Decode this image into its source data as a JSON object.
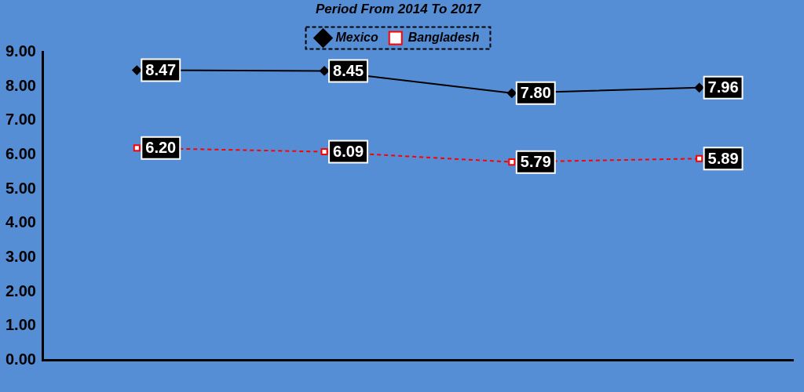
{
  "chart_data": {
    "type": "line",
    "title": "Period From 2014 To 2017",
    "categories": [
      null,
      null,
      null,
      null
    ],
    "series": [
      {
        "name": "Mexico",
        "color": "#000000",
        "marker": "diamond",
        "line_style": "solid",
        "values": [
          8.47,
          8.45,
          7.8,
          7.96
        ],
        "value_labels": [
          "8.47",
          "8.45",
          "7.80",
          "7.96"
        ]
      },
      {
        "name": "Bangladesh",
        "color": "#ff0000",
        "marker": "square",
        "line_style": "dashed",
        "values": [
          6.2,
          6.09,
          5.79,
          5.89
        ],
        "value_labels": [
          "6.20",
          "6.09",
          "5.79",
          "5.89"
        ]
      }
    ],
    "ylim": [
      0,
      9
    ],
    "yticks": [
      {
        "value": 0,
        "label": "0.00"
      },
      {
        "value": 1,
        "label": "1.00"
      },
      {
        "value": 2,
        "label": "2.00"
      },
      {
        "value": 3,
        "label": "3.00"
      },
      {
        "value": 4,
        "label": "4.00"
      },
      {
        "value": 5,
        "label": "5.00"
      },
      {
        "value": 6,
        "label": "6.00"
      },
      {
        "value": 7,
        "label": "7.00"
      },
      {
        "value": 8,
        "label": "8.00"
      },
      {
        "value": 9,
        "label": "9.00"
      }
    ],
    "grid": false,
    "legend": "top"
  }
}
